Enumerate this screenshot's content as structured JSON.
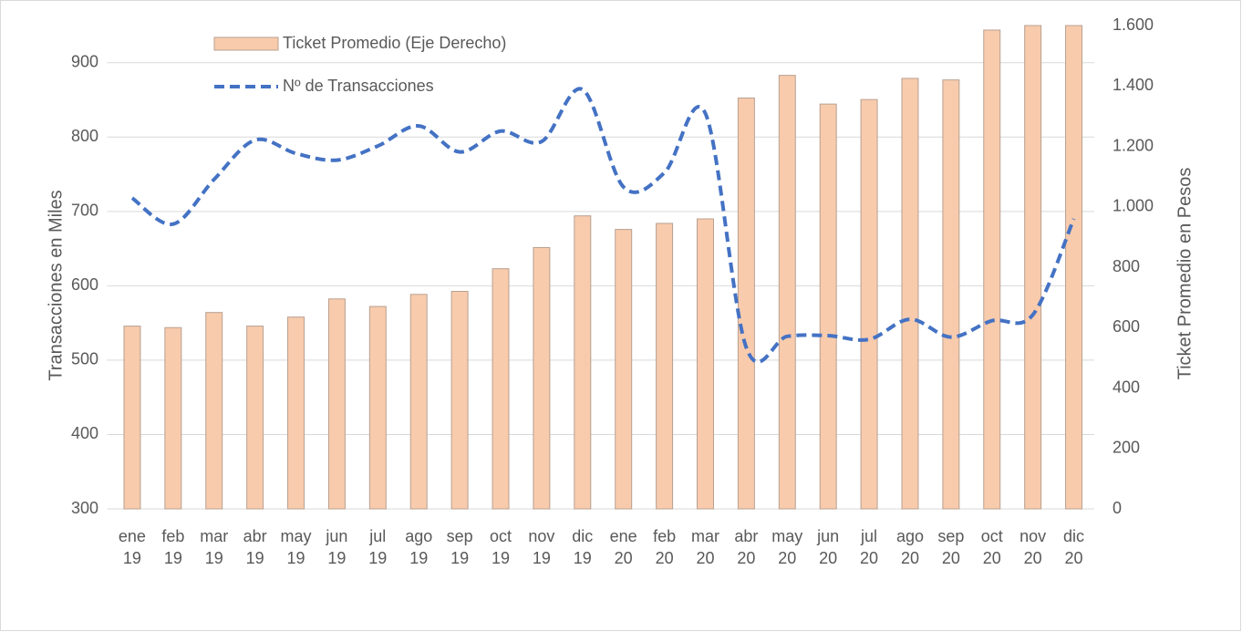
{
  "chart_data": {
    "type": "bar_line",
    "categories": [
      "ene 19",
      "feb 19",
      "mar 19",
      "abr 19",
      "may 19",
      "jun 19",
      "jul 19",
      "ago 19",
      "sep 19",
      "oct 19",
      "nov 19",
      "dic 19",
      "ene 20",
      "feb 20",
      "mar 20",
      "abr 20",
      "may 20",
      "jun 20",
      "jul 20",
      "ago 20",
      "sep 20",
      "oct 20",
      "nov 20",
      "dic 20"
    ],
    "series": [
      {
        "name": "Ticket Promedio (Eje Derecho)",
        "type": "bar",
        "axis": "y2",
        "color": "#f8cbad",
        "edge_color": "#b8a090",
        "values": [
          605,
          600,
          650,
          605,
          635,
          695,
          670,
          710,
          720,
          795,
          865,
          970,
          925,
          945,
          960,
          1360,
          1435,
          1340,
          1355,
          1425,
          1420,
          1585,
          1600,
          1600
        ]
      },
      {
        "name": "Nº de Transacciones",
        "type": "line",
        "color": "#4472c4",
        "dashed": true,
        "values": [
          718,
          683,
          743,
          796,
          778,
          769,
          788,
          815,
          780,
          808,
          794,
          864,
          733,
          752,
          832,
          517,
          532,
          533,
          528,
          555,
          531,
          553,
          561,
          690
        ]
      }
    ],
    "ylabel": "Transacciones en Miles",
    "y2label": "Ticket Promedio en Pesos",
    "ylim": [
      300,
      950
    ],
    "yticks": [
      300,
      400,
      500,
      600,
      700,
      800,
      900
    ],
    "y2lim": [
      0,
      1600
    ],
    "y2ticks": [
      0,
      200,
      400,
      600,
      800,
      {
        "value": 1000,
        "label": "1.000"
      },
      {
        "value": 1200,
        "label": "1.200"
      },
      {
        "value": 1400,
        "label": "1.400"
      },
      {
        "value": 1600,
        "label": "1.600"
      }
    ],
    "grid": true,
    "legend": "upper left"
  }
}
